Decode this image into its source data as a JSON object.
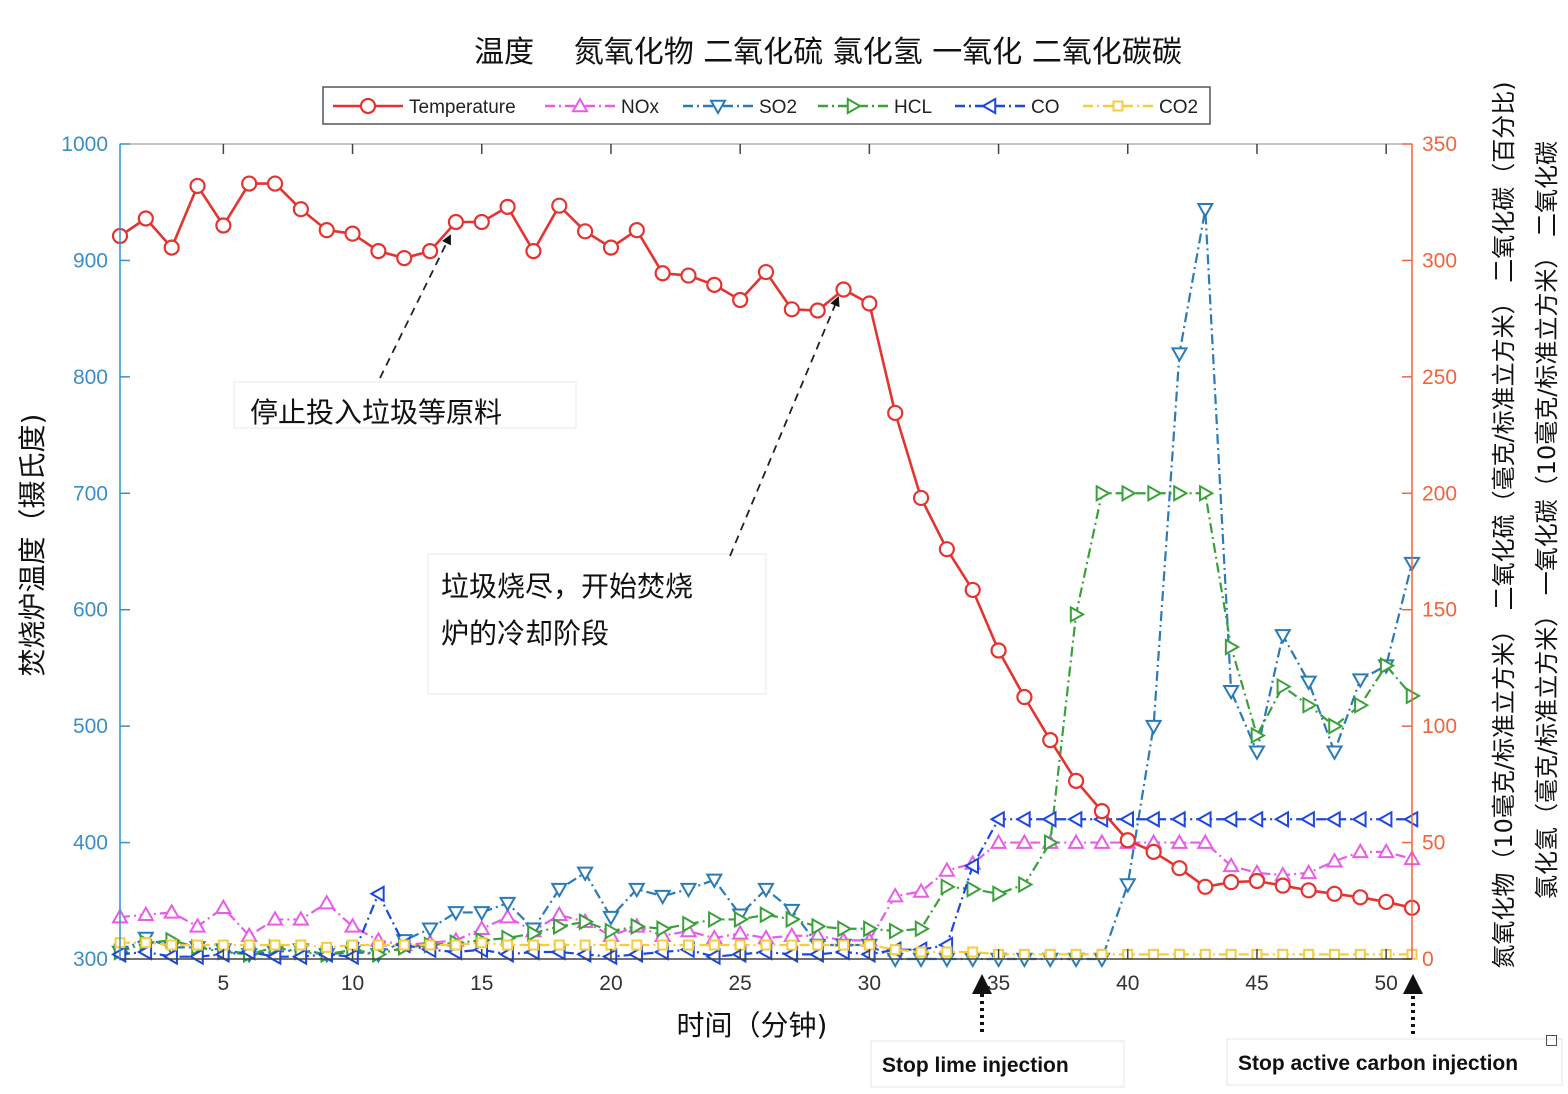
{
  "chart_data": {
    "type": "line",
    "title": "温度　 氮氧化物 二氧化硫 氯化氢 一氧化 二氧化碳碳",
    "xlabel": "时间（分钟)",
    "ylabel_left": "焚烧炉温度（摄氏度)",
    "ylabel_right": [
      "氮氧化物（10毫克/标准立方米） 二氧化硫（毫克/标准立方米） 二氧化碳（百分比)",
      "氯化氢（毫克/标准立方米） 一氧化碳（10毫克/标准立方米） 二氧化碳"
    ],
    "xlim": [
      1,
      51
    ],
    "ylim_left": [
      300,
      1000
    ],
    "ylim_right": [
      0,
      350
    ],
    "x_ticks": [
      5,
      10,
      15,
      20,
      25,
      30,
      35,
      40,
      45,
      50
    ],
    "y_ticks_left": [
      300,
      400,
      500,
      600,
      700,
      800,
      900,
      1000
    ],
    "y_ticks_right": [
      0,
      50,
      100,
      150,
      200,
      250,
      300,
      350
    ],
    "colors": {
      "left_axis": "#3b8fc9",
      "right_axis": "#f0653a"
    },
    "legend": {
      "position": "top-center"
    },
    "series": [
      {
        "name": "Temperature",
        "axis": "left",
        "color": "#e3342f",
        "marker": "circle",
        "dash": "solid",
        "x": [
          1,
          2,
          3,
          4,
          5,
          6,
          7,
          8,
          9,
          10,
          11,
          12,
          13,
          14,
          15,
          16,
          17,
          18,
          19,
          20,
          21,
          22,
          23,
          24,
          25,
          26,
          27,
          28,
          29,
          30,
          31,
          32,
          33,
          34,
          35,
          36,
          37,
          38,
          39,
          40,
          41,
          42,
          43,
          44,
          45,
          46,
          47,
          48,
          49,
          50,
          51
        ],
        "values": [
          921,
          936,
          911,
          964,
          930,
          966,
          966,
          944,
          926,
          923,
          908,
          902,
          908,
          933,
          933,
          946,
          908,
          947,
          925,
          911,
          926,
          889,
          887,
          879,
          866,
          890,
          858,
          857,
          875,
          863,
          769,
          696,
          652,
          617,
          565,
          525,
          488,
          453,
          427,
          402,
          392,
          378,
          362,
          366,
          367,
          363,
          359,
          356,
          353,
          349,
          344
        ]
      },
      {
        "name": "NOx",
        "axis": "right",
        "color": "#e85de8",
        "marker": "triangle-up",
        "dash": "dashdot",
        "x": [
          1,
          2,
          3,
          4,
          5,
          6,
          7,
          8,
          9,
          10,
          11,
          12,
          13,
          14,
          15,
          16,
          17,
          18,
          19,
          20,
          21,
          22,
          23,
          24,
          25,
          26,
          27,
          28,
          29,
          30,
          31,
          32,
          33,
          34,
          35,
          36,
          37,
          38,
          39,
          40,
          41,
          42,
          43,
          44,
          45,
          46,
          47,
          48,
          49,
          50,
          51
        ],
        "values": [
          18,
          19,
          20,
          14,
          22,
          10,
          17,
          17,
          24,
          14,
          8,
          6,
          7,
          8,
          13,
          18,
          12,
          19,
          16,
          10,
          14,
          10,
          12,
          9,
          11,
          9,
          10,
          10,
          8,
          8,
          27,
          29,
          38,
          41,
          50,
          50,
          50,
          50,
          50,
          50,
          50,
          50,
          50,
          40,
          37,
          36,
          37,
          42,
          46,
          46,
          43
        ]
      },
      {
        "name": "SO2",
        "axis": "right",
        "color": "#2a7bb8",
        "marker": "triangle-down",
        "dash": "dashdot",
        "x": [
          1,
          2,
          3,
          4,
          5,
          6,
          7,
          8,
          9,
          10,
          11,
          12,
          13,
          14,
          15,
          16,
          17,
          18,
          19,
          20,
          21,
          22,
          23,
          24,
          25,
          26,
          27,
          28,
          29,
          30,
          31,
          32,
          33,
          34,
          35,
          36,
          37,
          38,
          39,
          40,
          41,
          42,
          43,
          44,
          45,
          46,
          47,
          48,
          49,
          50,
          51
        ],
        "values": [
          3,
          9,
          5,
          5,
          4,
          2,
          3,
          4,
          2,
          3,
          2,
          8,
          13,
          20,
          20,
          24,
          13,
          30,
          37,
          18,
          30,
          27,
          30,
          34,
          19,
          30,
          21,
          6,
          6,
          6,
          0,
          0,
          0,
          0,
          0,
          0,
          0,
          0,
          0,
          32,
          100,
          260,
          322,
          115,
          89,
          139,
          119,
          89,
          120,
          126,
          170
        ]
      },
      {
        "name": "HCL",
        "axis": "right",
        "color": "#3aa13a",
        "marker": "triangle-right",
        "dash": "dashdot",
        "x": [
          1,
          2,
          3,
          4,
          5,
          6,
          7,
          8,
          9,
          10,
          11,
          12,
          13,
          14,
          15,
          16,
          17,
          18,
          19,
          20,
          21,
          22,
          23,
          24,
          25,
          26,
          27,
          28,
          29,
          30,
          31,
          32,
          33,
          34,
          35,
          36,
          37,
          38,
          39,
          40,
          41,
          42,
          43,
          44,
          45,
          46,
          47,
          48,
          49,
          50,
          51
        ],
        "values": [
          3,
          7,
          8,
          5,
          3,
          2,
          5,
          3,
          2,
          4,
          2,
          5,
          6,
          7,
          8,
          9,
          11,
          14,
          16,
          12,
          14,
          13,
          15,
          17,
          17,
          19,
          17,
          14,
          13,
          13,
          12,
          13,
          31,
          30,
          28,
          32,
          50,
          148,
          200,
          200,
          200,
          200,
          200,
          134,
          96,
          117,
          109,
          100,
          109,
          126,
          113
        ]
      },
      {
        "name": "CO",
        "axis": "right",
        "color": "#1c47e0",
        "marker": "triangle-left",
        "dash": "dashdot",
        "x": [
          1,
          2,
          3,
          4,
          5,
          6,
          7,
          8,
          9,
          10,
          11,
          12,
          13,
          14,
          15,
          16,
          17,
          18,
          19,
          20,
          21,
          22,
          23,
          24,
          25,
          26,
          27,
          28,
          29,
          30,
          31,
          32,
          33,
          34,
          35,
          36,
          37,
          38,
          39,
          40,
          41,
          42,
          43,
          44,
          45,
          46,
          47,
          48,
          49,
          50,
          51
        ],
        "values": [
          2,
          3,
          1,
          1,
          2,
          3,
          1,
          1,
          2,
          1,
          28,
          6,
          4,
          3,
          4,
          2,
          3,
          3,
          2,
          1,
          2,
          3,
          4,
          1,
          2,
          3,
          2,
          2,
          3,
          2,
          4,
          4,
          6,
          40,
          60,
          60,
          60,
          60,
          60,
          60,
          60,
          60,
          60,
          60,
          60,
          60,
          60,
          60,
          60,
          60,
          60
        ]
      },
      {
        "name": "CO2",
        "axis": "right",
        "color": "#f5cd3c",
        "marker": "square",
        "dash": "dashdot",
        "x": [
          1,
          2,
          3,
          4,
          5,
          6,
          7,
          8,
          9,
          10,
          11,
          12,
          13,
          14,
          15,
          16,
          17,
          18,
          19,
          20,
          21,
          22,
          23,
          24,
          25,
          26,
          27,
          28,
          29,
          30,
          31,
          32,
          33,
          34,
          35,
          36,
          37,
          38,
          39,
          40,
          41,
          42,
          43,
          44,
          45,
          46,
          47,
          48,
          49,
          50,
          51
        ],
        "values": [
          7,
          7,
          6,
          6,
          6,
          6,
          6,
          6,
          5,
          6,
          6,
          6,
          6,
          6,
          7,
          6,
          6,
          6,
          6,
          6,
          6,
          6,
          6,
          6,
          6,
          6,
          6,
          6,
          6,
          6,
          4,
          3,
          3,
          3,
          2,
          2,
          2,
          2,
          2,
          2,
          2,
          2,
          2,
          2,
          2,
          2,
          2,
          2,
          2,
          2,
          2
        ]
      }
    ],
    "annotations": [
      {
        "text": "停止投入垃圾等原料",
        "target_x": 14,
        "target_series": "Temperature"
      },
      {
        "text_lines": [
          "垃圾烧尽，开始焚烧",
          "炉的冷却阶段"
        ],
        "target_x": 29,
        "target_series": "Temperature"
      }
    ],
    "markers_below_axis": [
      {
        "text": "Stop lime injection",
        "x": 34
      },
      {
        "text": "Stop active carbon injection",
        "x": 51
      }
    ],
    "corner_glyph": "□"
  }
}
